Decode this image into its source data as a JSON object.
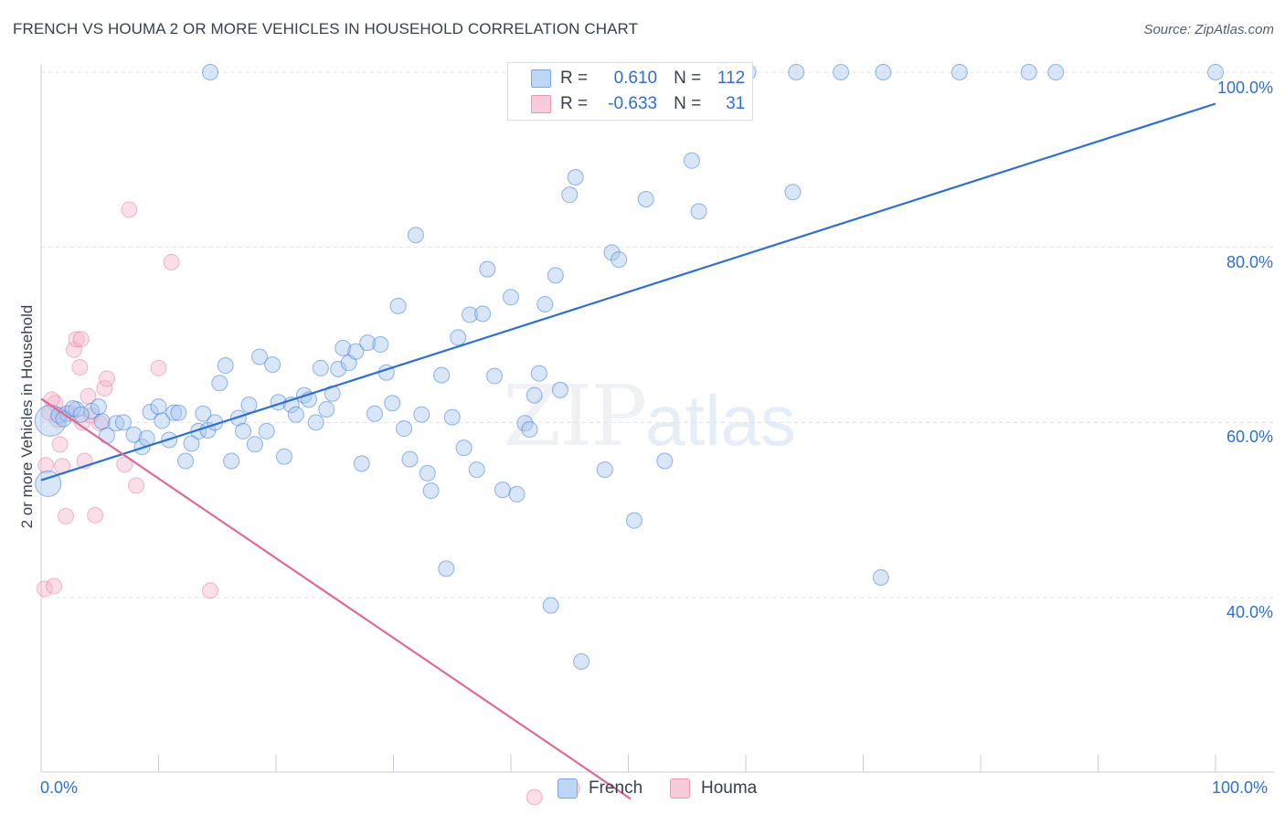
{
  "title": "FRENCH VS HOUMA 2 OR MORE VEHICLES IN HOUSEHOLD CORRELATION CHART",
  "source": "Source: ZipAtlas.com",
  "watermark": {
    "zip": "ZIP",
    "atlas": "atlas"
  },
  "colors": {
    "french": "#2f6fd0",
    "french_fill": "#a8c8f0",
    "houma": "#e06a96",
    "houma_fill": "#f5b6cb",
    "axis_text": "#2f6fd0",
    "grid": "#dde2e8"
  },
  "legend": {
    "r_label": "R =",
    "n_label": "N =",
    "rows": [
      {
        "series": "French",
        "r": "0.610",
        "n": "112"
      },
      {
        "series": "Houma",
        "r": "-0.633",
        "n": "31"
      }
    ]
  },
  "chart_data": {
    "type": "scatter",
    "title": "FRENCH VS HOUMA 2 OR MORE VEHICLES IN HOUSEHOLD CORRELATION CHART",
    "xlabel": "",
    "ylabel": "2 or more Vehicles in Household",
    "xlim": [
      0,
      100
    ],
    "ylim": [
      16,
      100
    ],
    "x_tick_labels": [
      "0.0%",
      "100.0%"
    ],
    "y_ticks": [
      40,
      60,
      80,
      100
    ],
    "y_tick_labels": [
      "40.0%",
      "60.0%",
      "80.0%",
      "100.0%"
    ],
    "grid": true,
    "legend_position": "bottom-center",
    "series": [
      {
        "name": "French",
        "trend": {
          "x": [
            0,
            100
          ],
          "y": [
            53.4,
            96.4
          ]
        },
        "points": [
          [
            0.8,
            60.2
          ],
          [
            0.6,
            53.0
          ],
          [
            1.5,
            60.8
          ],
          [
            2.2,
            61.0
          ],
          [
            3.0,
            61.5
          ],
          [
            4.3,
            61.3
          ],
          [
            5.2,
            60.1
          ],
          [
            5.6,
            58.5
          ],
          [
            6.4,
            59.9
          ],
          [
            7.0,
            60.0
          ],
          [
            7.9,
            58.6
          ],
          [
            8.6,
            57.2
          ],
          [
            9.0,
            58.2
          ],
          [
            9.3,
            61.2
          ],
          [
            10.0,
            61.8
          ],
          [
            10.3,
            60.2
          ],
          [
            10.9,
            58.0
          ],
          [
            11.3,
            61.1
          ],
          [
            11.7,
            61.1
          ],
          [
            12.3,
            55.6
          ],
          [
            12.8,
            57.6
          ],
          [
            13.4,
            59.0
          ],
          [
            13.8,
            61.0
          ],
          [
            14.2,
            59.1
          ],
          [
            14.8,
            60.0
          ],
          [
            15.2,
            64.5
          ],
          [
            15.7,
            66.5
          ],
          [
            16.2,
            55.6
          ],
          [
            16.8,
            60.5
          ],
          [
            17.2,
            59.0
          ],
          [
            17.7,
            62.0
          ],
          [
            18.2,
            57.5
          ],
          [
            18.6,
            67.5
          ],
          [
            19.2,
            59.0
          ],
          [
            19.7,
            66.6
          ],
          [
            20.2,
            62.3
          ],
          [
            20.7,
            56.1
          ],
          [
            21.3,
            62.0
          ],
          [
            21.7,
            60.9
          ],
          [
            22.4,
            63.1
          ],
          [
            22.8,
            62.6
          ],
          [
            23.4,
            60.0
          ],
          [
            23.8,
            66.2
          ],
          [
            24.3,
            61.5
          ],
          [
            24.8,
            63.3
          ],
          [
            25.3,
            66.1
          ],
          [
            25.7,
            68.5
          ],
          [
            26.2,
            66.8
          ],
          [
            26.8,
            68.1
          ],
          [
            27.3,
            55.3
          ],
          [
            27.8,
            69.1
          ],
          [
            28.4,
            61.0
          ],
          [
            28.9,
            68.9
          ],
          [
            29.4,
            65.7
          ],
          [
            29.9,
            62.2
          ],
          [
            30.4,
            73.3
          ],
          [
            30.9,
            59.3
          ],
          [
            31.4,
            55.8
          ],
          [
            31.9,
            81.4
          ],
          [
            32.4,
            60.9
          ],
          [
            32.9,
            54.2
          ],
          [
            33.2,
            52.2
          ],
          [
            34.1,
            65.4
          ],
          [
            34.5,
            43.3
          ],
          [
            35.0,
            60.6
          ],
          [
            35.5,
            69.7
          ],
          [
            36.0,
            57.1
          ],
          [
            36.5,
            72.3
          ],
          [
            37.1,
            54.6
          ],
          [
            37.6,
            72.4
          ],
          [
            38.0,
            77.5
          ],
          [
            38.6,
            65.3
          ],
          [
            39.3,
            52.3
          ],
          [
            40.0,
            74.3
          ],
          [
            40.5,
            51.8
          ],
          [
            41.2,
            59.9
          ],
          [
            41.6,
            59.2
          ],
          [
            42.0,
            63.1
          ],
          [
            42.4,
            65.6
          ],
          [
            42.9,
            73.5
          ],
          [
            43.4,
            39.1
          ],
          [
            43.8,
            76.8
          ],
          [
            44.2,
            63.7
          ],
          [
            45.0,
            86.0
          ],
          [
            45.5,
            88.0
          ],
          [
            46.0,
            32.7
          ],
          [
            48.0,
            54.6
          ],
          [
            48.6,
            79.4
          ],
          [
            49.2,
            78.6
          ],
          [
            50.5,
            48.8
          ],
          [
            51.5,
            85.5
          ],
          [
            53.1,
            55.6
          ],
          [
            55.4,
            89.9
          ],
          [
            56.0,
            84.1
          ],
          [
            64.0,
            86.3
          ],
          [
            71.5,
            42.3
          ],
          [
            46.9,
            100.0
          ],
          [
            53.3,
            100.0
          ],
          [
            56.0,
            100.0
          ],
          [
            60.2,
            100.0
          ],
          [
            64.3,
            100.0
          ],
          [
            68.1,
            100.0
          ],
          [
            71.7,
            100.0
          ],
          [
            78.2,
            100.0
          ],
          [
            84.1,
            100.0
          ],
          [
            86.4,
            100.0
          ],
          [
            100.0,
            100.0
          ],
          [
            14.4,
            100.0
          ],
          [
            2.7,
            61.6
          ],
          [
            1.9,
            60.4
          ],
          [
            3.4,
            60.9
          ],
          [
            4.9,
            61.8
          ]
        ]
      },
      {
        "name": "Houma",
        "trend": {
          "x": [
            0,
            50.2
          ],
          "y": [
            62.7,
            17.0
          ]
        },
        "points": [
          [
            0.3,
            41.0
          ],
          [
            0.4,
            55.1
          ],
          [
            1.1,
            41.3
          ],
          [
            1.2,
            62.2
          ],
          [
            1.6,
            57.5
          ],
          [
            1.8,
            55.0
          ],
          [
            2.1,
            49.3
          ],
          [
            2.5,
            61.1
          ],
          [
            2.8,
            68.3
          ],
          [
            3.0,
            69.5
          ],
          [
            3.3,
            66.3
          ],
          [
            3.5,
            60.0
          ],
          [
            3.7,
            55.6
          ],
          [
            4.0,
            63.0
          ],
          [
            4.3,
            60.8
          ],
          [
            4.6,
            49.4
          ],
          [
            5.0,
            59.9
          ],
          [
            5.4,
            63.9
          ],
          [
            5.6,
            65.0
          ],
          [
            7.1,
            55.2
          ],
          [
            8.1,
            52.8
          ],
          [
            7.5,
            84.3
          ],
          [
            10.0,
            66.2
          ],
          [
            11.1,
            78.3
          ],
          [
            14.4,
            40.8
          ],
          [
            0.9,
            62.6
          ],
          [
            3.4,
            69.5
          ],
          [
            42.0,
            17.2
          ],
          [
            45.2,
            18.2
          ],
          [
            0.7,
            61.1
          ],
          [
            1.4,
            60.3
          ]
        ]
      }
    ]
  }
}
